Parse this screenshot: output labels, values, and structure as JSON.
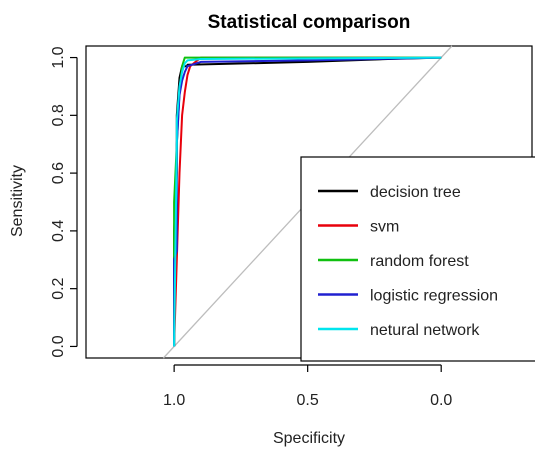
{
  "chart_data": {
    "type": "line",
    "title": "Statistical comparison",
    "xlabel": "Specificity",
    "ylabel": "Sensitivity",
    "xlim": [
      1.33,
      -0.34
    ],
    "ylim": [
      -0.04,
      1.04
    ],
    "x_ticks": [
      {
        "value": 1.0,
        "label": "1.0"
      },
      {
        "value": 0.5,
        "label": "0.5"
      },
      {
        "value": 0.0,
        "label": "0.0"
      }
    ],
    "y_ticks": [
      {
        "value": 0.0,
        "label": "0.0"
      },
      {
        "value": 0.2,
        "label": "0.2"
      },
      {
        "value": 0.4,
        "label": "0.4"
      },
      {
        "value": 0.6,
        "label": "0.6"
      },
      {
        "value": 0.8,
        "label": "0.8"
      },
      {
        "value": 1.0,
        "label": "1.0"
      }
    ],
    "diagonal_color": "#bdbdbd",
    "legend_position": "bottom-right",
    "series": [
      {
        "name": "decision tree",
        "color": "#000000",
        "x": [
          1.0,
          1.0,
          0.99,
          0.99,
          0.98,
          0.97,
          0.95,
          0.95,
          0.5,
          0.2,
          0.0
        ],
        "y": [
          0.0,
          0.4,
          0.6,
          0.8,
          0.93,
          0.97,
          0.97,
          0.975,
          0.985,
          0.995,
          1.0
        ]
      },
      {
        "name": "svm",
        "color": "#e8000b",
        "x": [
          1.0,
          0.99,
          0.98,
          0.97,
          0.96,
          0.95,
          0.94,
          0.9,
          0.0
        ],
        "y": [
          0.0,
          0.3,
          0.6,
          0.8,
          0.88,
          0.94,
          0.97,
          1.0,
          1.0
        ]
      },
      {
        "name": "random forest",
        "color": "#10c010",
        "x": [
          1.0,
          1.0,
          1.0,
          0.99,
          0.98,
          0.97,
          0.96,
          0.95,
          0.0
        ],
        "y": [
          0.0,
          0.35,
          0.5,
          0.7,
          0.88,
          0.97,
          1.0,
          1.0,
          1.0
        ]
      },
      {
        "name": "logistic regression",
        "color": "#2020d0",
        "x": [
          1.0,
          1.0,
          0.99,
          0.99,
          0.98,
          0.97,
          0.96,
          0.95,
          0.9,
          0.5,
          0.0
        ],
        "y": [
          0.0,
          0.3,
          0.33,
          0.7,
          0.87,
          0.92,
          0.95,
          0.97,
          0.985,
          0.99,
          1.0
        ]
      },
      {
        "name": "netural network",
        "color": "#00e5ee",
        "x": [
          1.0,
          0.99,
          0.99,
          0.98,
          0.97,
          0.96,
          0.95,
          0.9,
          0.0
        ],
        "y": [
          0.0,
          0.7,
          0.78,
          0.9,
          0.95,
          0.98,
          0.99,
          0.995,
          1.0
        ]
      }
    ]
  }
}
